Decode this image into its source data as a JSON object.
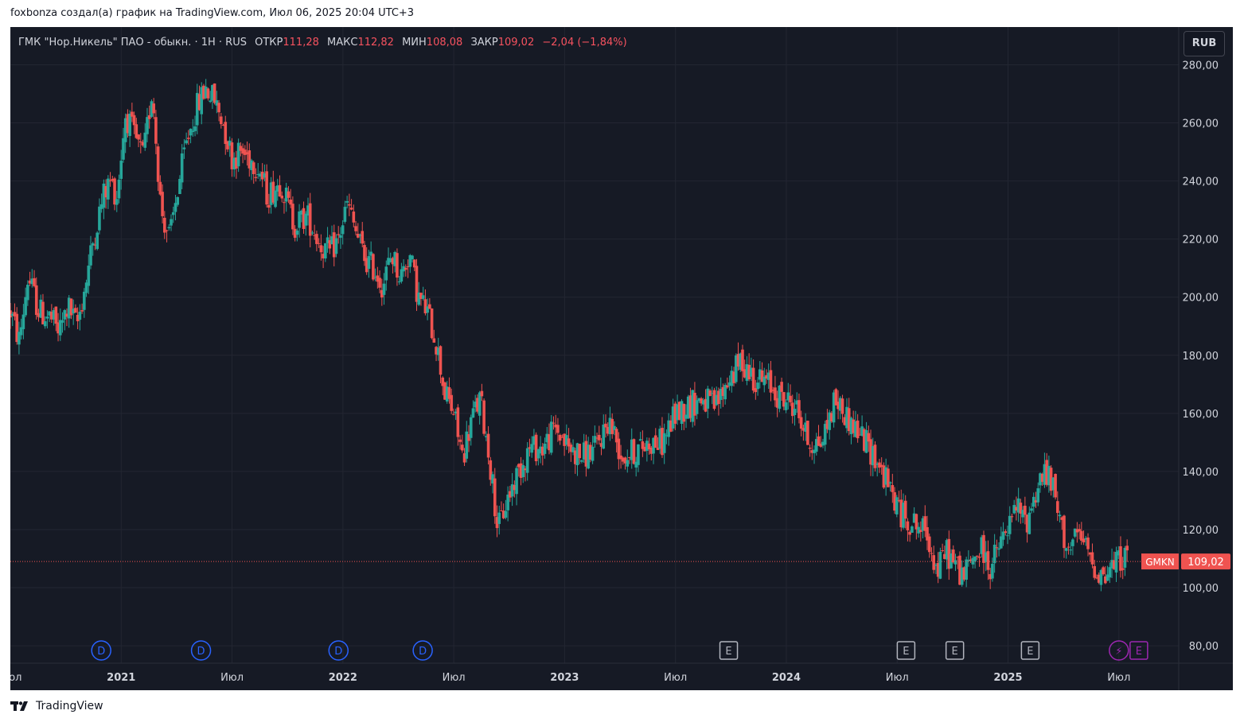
{
  "header": {
    "text": "foxbonza создал(а) график на TradingView.com, Июл 06, 2025 20:04 UTC+3"
  },
  "legend": {
    "symbol": "ГМК \"Нор.Никель\" ПАО - обыкн. · 1H · RUS",
    "open_label": "ОТКР",
    "open_value": "111,28",
    "high_label": "МАКС",
    "high_value": "112,82",
    "low_label": "МИН",
    "low_value": "108,08",
    "close_label": "ЗАКР",
    "close_value": "109,02",
    "change": "−2,04 (−1,84%)"
  },
  "currency_button": "RUB",
  "price_badge": {
    "ticker": "GMKN",
    "value": "109,02"
  },
  "footer": {
    "brand": "TradingView"
  },
  "colors": {
    "background": "#161a25",
    "grid": "#232632",
    "axis_text": "#d1d4dc",
    "up": "#26a69a",
    "down": "#ef5350",
    "price_line": "#ef5350",
    "dividend_marker": "#2962ff",
    "earnings_marker": "#b2b5be",
    "split_marker": "#9c27b0"
  },
  "event_markers": [
    {
      "label": "D",
      "kind": "dividend",
      "date": 2020.91
    },
    {
      "label": "D",
      "kind": "dividend",
      "date": 2021.36
    },
    {
      "label": "D",
      "kind": "dividend",
      "date": 2021.98
    },
    {
      "label": "D",
      "kind": "dividend",
      "date": 2022.36
    },
    {
      "label": "E",
      "kind": "earnings",
      "date": 2023.74
    },
    {
      "label": "E",
      "kind": "earnings",
      "date": 2024.54
    },
    {
      "label": "E",
      "kind": "earnings",
      "date": 2024.76
    },
    {
      "label": "E",
      "kind": "earnings",
      "date": 2025.1
    },
    {
      "label": "⚡",
      "kind": "split",
      "date": 2025.5
    },
    {
      "label": "E",
      "kind": "earnings-upcoming",
      "date": 2025.59
    }
  ],
  "chart_data": {
    "type": "candlestick",
    "title": "",
    "xlabel": "",
    "ylabel": "",
    "currency": "RUB",
    "ylim": [
      74,
      293
    ],
    "xlim": [
      2020.5,
      2025.77
    ],
    "y_ticks": [
      "280,00",
      "260,00",
      "240,00",
      "220,00",
      "200,00",
      "180,00",
      "160,00",
      "140,00",
      "120,00",
      "100,00",
      "80,00"
    ],
    "y_tick_values": [
      280,
      260,
      240,
      220,
      200,
      180,
      160,
      140,
      120,
      100,
      80
    ],
    "x_ticks": [
      {
        "label": "Июл",
        "date": 2020.5,
        "bold": false
      },
      {
        "label": "2021",
        "date": 2021.0,
        "bold": true
      },
      {
        "label": "Июл",
        "date": 2021.5,
        "bold": false
      },
      {
        "label": "2022",
        "date": 2022.0,
        "bold": true
      },
      {
        "label": "Июл",
        "date": 2022.5,
        "bold": false
      },
      {
        "label": "2023",
        "date": 2023.0,
        "bold": true
      },
      {
        "label": "Июл",
        "date": 2023.5,
        "bold": false
      },
      {
        "label": "2024",
        "date": 2024.0,
        "bold": true
      },
      {
        "label": "Июл",
        "date": 2024.5,
        "bold": false
      },
      {
        "label": "2025",
        "date": 2025.0,
        "bold": true
      },
      {
        "label": "Июл",
        "date": 2025.5,
        "bold": false
      }
    ],
    "grid": true,
    "last_price": 109.02,
    "price_path": [
      [
        2020.5,
        195
      ],
      [
        2020.54,
        185
      ],
      [
        2020.58,
        207
      ],
      [
        2020.63,
        195
      ],
      [
        2020.68,
        193
      ],
      [
        2020.72,
        188
      ],
      [
        2020.76,
        197
      ],
      [
        2020.8,
        190
      ],
      [
        2020.84,
        205
      ],
      [
        2020.88,
        222
      ],
      [
        2020.92,
        235
      ],
      [
        2020.95,
        240
      ],
      [
        2020.98,
        235
      ],
      [
        2021.02,
        263
      ],
      [
        2021.06,
        255
      ],
      [
        2021.1,
        248
      ],
      [
        2021.14,
        272
      ],
      [
        2021.18,
        230
      ],
      [
        2021.22,
        220
      ],
      [
        2021.25,
        235
      ],
      [
        2021.3,
        255
      ],
      [
        2021.34,
        265
      ],
      [
        2021.38,
        272
      ],
      [
        2021.42,
        268
      ],
      [
        2021.46,
        260
      ],
      [
        2021.5,
        248
      ],
      [
        2021.54,
        250
      ],
      [
        2021.58,
        248
      ],
      [
        2021.62,
        245
      ],
      [
        2021.66,
        235
      ],
      [
        2021.72,
        240
      ],
      [
        2021.78,
        225
      ],
      [
        2021.84,
        228
      ],
      [
        2021.9,
        218
      ],
      [
        2021.94,
        215
      ],
      [
        2021.98,
        220
      ],
      [
        2022.02,
        232
      ],
      [
        2022.06,
        222
      ],
      [
        2022.1,
        213
      ],
      [
        2022.14,
        210
      ],
      [
        2022.18,
        204
      ],
      [
        2022.22,
        215
      ],
      [
        2022.26,
        207
      ],
      [
        2022.3,
        215
      ],
      [
        2022.34,
        200
      ],
      [
        2022.38,
        195
      ],
      [
        2022.42,
        185
      ],
      [
        2022.46,
        167
      ],
      [
        2022.5,
        160
      ],
      [
        2022.54,
        145
      ],
      [
        2022.58,
        158
      ],
      [
        2022.62,
        165
      ],
      [
        2022.66,
        145
      ],
      [
        2022.7,
        120
      ],
      [
        2022.74,
        130
      ],
      [
        2022.78,
        138
      ],
      [
        2022.84,
        148
      ],
      [
        2022.9,
        148
      ],
      [
        2022.96,
        155
      ],
      [
        2023.02,
        148
      ],
      [
        2023.08,
        145
      ],
      [
        2023.14,
        148
      ],
      [
        2023.2,
        158
      ],
      [
        2023.26,
        145
      ],
      [
        2023.32,
        147
      ],
      [
        2023.38,
        150
      ],
      [
        2023.44,
        150
      ],
      [
        2023.5,
        160
      ],
      [
        2023.56,
        163
      ],
      [
        2023.62,
        165
      ],
      [
        2023.68,
        162
      ],
      [
        2023.74,
        172
      ],
      [
        2023.8,
        178
      ],
      [
        2023.86,
        172
      ],
      [
        2023.92,
        170
      ],
      [
        2023.98,
        165
      ],
      [
        2024.04,
        163
      ],
      [
        2024.1,
        150
      ],
      [
        2024.16,
        150
      ],
      [
        2024.22,
        165
      ],
      [
        2024.28,
        158
      ],
      [
        2024.34,
        152
      ],
      [
        2024.4,
        145
      ],
      [
        2024.46,
        135
      ],
      [
        2024.52,
        125
      ],
      [
        2024.58,
        122
      ],
      [
        2024.64,
        118
      ],
      [
        2024.68,
        105
      ],
      [
        2024.72,
        113
      ],
      [
        2024.76,
        108
      ],
      [
        2024.8,
        104
      ],
      [
        2024.84,
        110
      ],
      [
        2024.88,
        113
      ],
      [
        2024.92,
        107
      ],
      [
        2024.96,
        114
      ],
      [
        2025.0,
        120
      ],
      [
        2025.04,
        128
      ],
      [
        2025.08,
        122
      ],
      [
        2025.12,
        132
      ],
      [
        2025.16,
        140
      ],
      [
        2025.2,
        135
      ],
      [
        2025.24,
        120
      ],
      [
        2025.28,
        113
      ],
      [
        2025.32,
        118
      ],
      [
        2025.36,
        112
      ],
      [
        2025.4,
        106
      ],
      [
        2025.44,
        104
      ],
      [
        2025.48,
        108
      ],
      [
        2025.52,
        111
      ],
      [
        2025.54,
        109
      ]
    ]
  }
}
